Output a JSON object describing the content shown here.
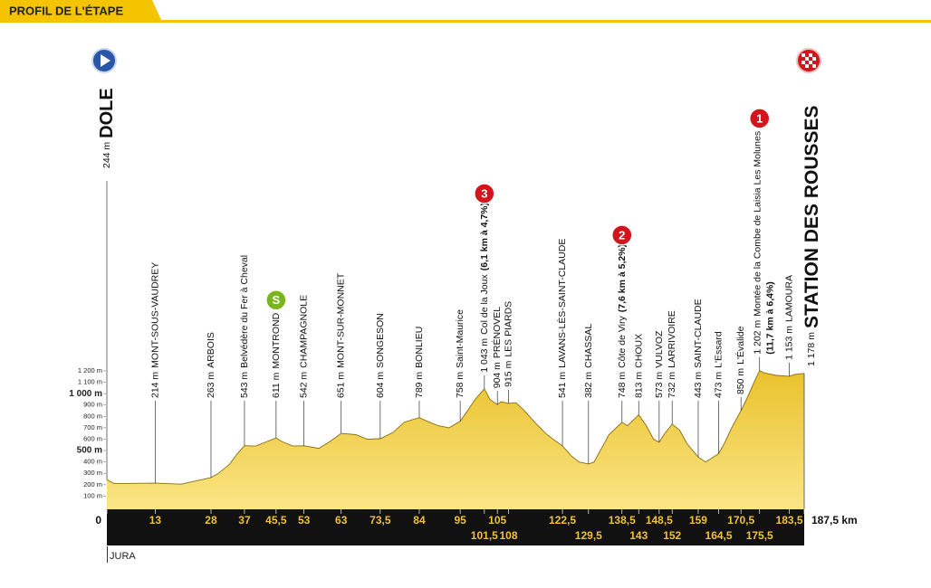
{
  "header": {
    "title": "PROFIL DE L'ÉTAPE"
  },
  "chart_data": {
    "type": "area",
    "color": "#f2cd3a",
    "xlim": [
      0,
      187.5
    ],
    "ylim": [
      0,
      1200
    ],
    "x": [
      0,
      2,
      13,
      20,
      28,
      30,
      33,
      35,
      37,
      40,
      45.5,
      47,
      50,
      53,
      57,
      60,
      63,
      67,
      70,
      73.5,
      77,
      80,
      84,
      86,
      89,
      92,
      95,
      97,
      99,
      101.5,
      103,
      105,
      106,
      108,
      110,
      112,
      115,
      118,
      120,
      122.5,
      125,
      127,
      129.5,
      131,
      133,
      135,
      138.5,
      140,
      143,
      145,
      147,
      148.5,
      150,
      152,
      154,
      156,
      159,
      161,
      162,
      164.5,
      166,
      168,
      170.5,
      172,
      174,
      175.5,
      177,
      180,
      183.5,
      185,
      187.5
    ],
    "values": [
      244,
      210,
      214,
      205,
      263,
      300,
      380,
      470,
      543,
      540,
      611,
      580,
      540,
      542,
      520,
      580,
      651,
      640,
      600,
      604,
      660,
      750,
      789,
      760,
      720,
      700,
      758,
      850,
      950,
      1043,
      950,
      904,
      930,
      915,
      920,
      860,
      750,
      650,
      600,
      541,
      450,
      400,
      382,
      400,
      520,
      640,
      748,
      720,
      813,
      720,
      600,
      573,
      650,
      732,
      680,
      560,
      443,
      400,
      420,
      473,
      560,
      700,
      850,
      950,
      1100,
      1202,
      1180,
      1160,
      1153,
      1170,
      1178
    ],
    "xticks": [
      0,
      13,
      28,
      37,
      {
        "value": 45.5,
        "label": "45,5"
      },
      53,
      63,
      {
        "value": 73.5,
        "label": "73,5"
      },
      84,
      95,
      {
        "value": 101.5,
        "label": "101,5"
      },
      105,
      108,
      {
        "value": 122.5,
        "label": "122,5"
      },
      {
        "value": 129.5,
        "label": "129,5"
      },
      {
        "value": 138.5,
        "label": "138,5"
      },
      143,
      {
        "value": 148.5,
        "label": "148,5"
      },
      152,
      159,
      {
        "value": 164.5,
        "label": "164,5"
      },
      {
        "value": 170.5,
        "label": "170,5"
      },
      {
        "value": 175.5,
        "label": "175,5"
      },
      {
        "value": 183.5,
        "label": "183,5"
      },
      {
        "value": 187.5,
        "label": "187,5 km"
      }
    ],
    "yticks": [
      {
        "value": 100,
        "label": "100 m"
      },
      {
        "value": 200,
        "label": "200 m"
      },
      {
        "value": 300,
        "label": "300 m"
      },
      {
        "value": 400,
        "label": "400 m"
      },
      {
        "value": 500,
        "label": "500 m"
      },
      {
        "value": 600,
        "label": "600 m"
      },
      {
        "value": 700,
        "label": "700 m"
      },
      {
        "value": 800,
        "label": "800 m"
      },
      {
        "value": 900,
        "label": "900 m"
      },
      {
        "value": 1000,
        "label": "1 000 m"
      },
      {
        "value": 1100,
        "label": "1 100 m"
      },
      {
        "value": 1200,
        "label": "1 200 m"
      }
    ],
    "start": {
      "alt": {
        "value": 244,
        "label": "244 m"
      },
      "name": "DOLE"
    },
    "finish": {
      "alt": {
        "value": 1178,
        "label": "1 178 m"
      },
      "name": "STATION DES ROUSSES"
    },
    "waypoints": [
      {
        "km": 13,
        "alt": {
          "value": 214,
          "label": "214 m"
        },
        "name": "MONT-SOUS-VAUDREY"
      },
      {
        "km": 28,
        "alt": {
          "value": 263,
          "label": "263 m"
        },
        "name": "ARBOIS"
      },
      {
        "km": 37,
        "alt": {
          "value": 543,
          "label": "543 m"
        },
        "name": "Belvédère du Fer à Cheval"
      },
      {
        "km": 45.5,
        "alt": {
          "value": 611,
          "label": "611 m"
        },
        "name": "MONTROND",
        "marker": "S"
      },
      {
        "km": 53,
        "alt": {
          "value": 542,
          "label": "542 m"
        },
        "name": "CHAMPAGNOLE"
      },
      {
        "km": 63,
        "alt": {
          "value": 651,
          "label": "651 m"
        },
        "name": "MONT-SUR-MONNET"
      },
      {
        "km": 73.5,
        "alt": {
          "value": 604,
          "label": "604 m"
        },
        "name": "SONGESON"
      },
      {
        "km": 84,
        "alt": {
          "value": 789,
          "label": "789 m"
        },
        "name": "BONLIEU"
      },
      {
        "km": 95,
        "alt": {
          "value": 758,
          "label": "758 m"
        },
        "name": "Saint-Maurice"
      },
      {
        "km": 101.5,
        "alt": {
          "value": 1043,
          "label": "1 043 m"
        },
        "name": "Col de la Joux",
        "detail": "(6,1 km à 4,7%)",
        "marker": "3"
      },
      {
        "km": 105,
        "alt": {
          "value": 904,
          "label": "904 m"
        },
        "name": "PRÉNOVEL"
      },
      {
        "km": 108,
        "alt": {
          "value": 915,
          "label": "915 m"
        },
        "name": "LES PIARDS"
      },
      {
        "km": 122.5,
        "alt": {
          "value": 541,
          "label": "541 m"
        },
        "name": "LAVANS-LÈS-SAINT-CLAUDE"
      },
      {
        "km": 129.5,
        "alt": {
          "value": 382,
          "label": "382 m"
        },
        "name": "CHASSAL"
      },
      {
        "km": 138.5,
        "alt": {
          "value": 748,
          "label": "748 m"
        },
        "name": "Côte de Viry",
        "detail": "(7,6 km à 5,2%)",
        "marker": "2"
      },
      {
        "km": 143,
        "alt": {
          "value": 813,
          "label": "813 m"
        },
        "name": "CHOUX"
      },
      {
        "km": 148.5,
        "alt": {
          "value": 573,
          "label": "573 m"
        },
        "name": "VULVOZ"
      },
      {
        "km": 152,
        "alt": {
          "value": 732,
          "label": "732 m"
        },
        "name": "LARRIVOIRE"
      },
      {
        "km": 159,
        "alt": {
          "value": 443,
          "label": "443 m"
        },
        "name": "SAINT-CLAUDE"
      },
      {
        "km": 164.5,
        "alt": {
          "value": 473,
          "label": "473 m"
        },
        "name": "L'Essard"
      },
      {
        "km": 170.5,
        "alt": {
          "value": 850,
          "label": "850 m"
        },
        "name": "L'Évalide"
      },
      {
        "km": 175.5,
        "alt": {
          "value": 1202,
          "label": "1 202 m"
        },
        "name": "Montée de la Combe de Laisia Les Molunes",
        "detail": "(11,7 km à 6,4%)",
        "marker": "1"
      },
      {
        "km": 183.5,
        "alt": {
          "value": 1153,
          "label": "1 153 m"
        },
        "name": "LAMOURA"
      }
    ],
    "region": "JURA"
  }
}
